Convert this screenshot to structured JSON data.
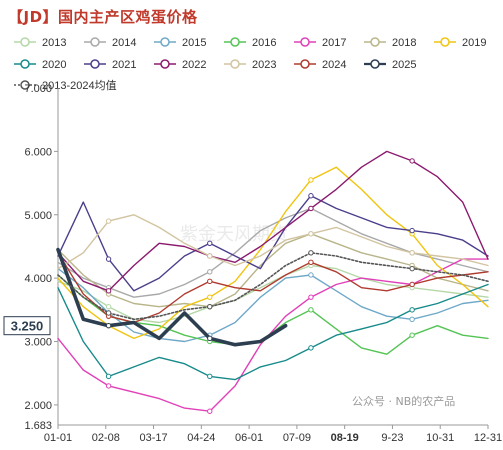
{
  "title": "【JD】国内主产区鸡蛋价格",
  "watermarks": {
    "center": "紫金天风期货",
    "corner": "公众号 · NB的农产品"
  },
  "chart_data": {
    "type": "line",
    "title": "【JD】国内主产区鸡蛋价格",
    "xlabel": "",
    "ylabel": "",
    "ylim": [
      1.683,
      7.0
    ],
    "y_ticks": [
      2.0,
      3.0,
      4.0,
      5.0,
      6.0
    ],
    "y_min_label": "1.683",
    "y_top_label": "7.000",
    "x_tick_labels": [
      "01-01",
      "02-08",
      "03-17",
      "04-24",
      "06-01",
      "07-09",
      "08-19",
      "9-23",
      "10-31",
      "12-31"
    ],
    "highlight_x_label": "08-19",
    "current_value_label": "3.250",
    "grid": false,
    "legend_position": "top",
    "series": [
      {
        "name": "2013",
        "color": "#b5d8a8",
        "style": "line",
        "values": [
          3.95,
          3.8,
          3.55,
          3.35,
          3.3,
          3.4,
          3.55,
          3.65,
          3.85,
          4.05,
          4.2,
          4.15,
          4.0,
          3.9,
          3.85,
          3.8,
          3.75,
          3.7
        ]
      },
      {
        "name": "2014",
        "color": "#a9a9a9",
        "style": "line",
        "values": [
          4.25,
          4.0,
          3.85,
          3.7,
          3.75,
          3.9,
          4.1,
          4.4,
          4.75,
          4.95,
          5.1,
          4.9,
          4.7,
          4.55,
          4.4,
          4.3,
          4.2,
          4.1
        ]
      },
      {
        "name": "2015",
        "color": "#6fa8c8",
        "style": "line",
        "values": [
          4.15,
          3.85,
          3.45,
          3.15,
          3.05,
          3.0,
          3.1,
          3.3,
          3.7,
          4.0,
          4.05,
          3.8,
          3.55,
          3.4,
          3.35,
          3.45,
          3.6,
          3.65
        ]
      },
      {
        "name": "2016",
        "color": "#55c455",
        "style": "line",
        "values": [
          4.05,
          3.7,
          3.4,
          3.3,
          3.25,
          3.1,
          3.0,
          2.95,
          3.0,
          3.3,
          3.5,
          3.2,
          2.9,
          2.8,
          3.1,
          3.25,
          3.1,
          3.05
        ]
      },
      {
        "name": "2017",
        "color": "#e040b8",
        "style": "line",
        "values": [
          3.05,
          2.55,
          2.3,
          2.2,
          2.1,
          1.95,
          1.9,
          2.3,
          2.95,
          3.4,
          3.7,
          3.9,
          4.0,
          3.95,
          3.9,
          4.1,
          4.3,
          4.3
        ]
      },
      {
        "name": "2018",
        "color": "#b9b58a",
        "style": "line",
        "values": [
          4.45,
          4.05,
          3.75,
          3.6,
          3.55,
          3.6,
          3.55,
          3.75,
          4.2,
          4.55,
          4.7,
          4.55,
          4.4,
          4.3,
          4.2,
          4.0,
          3.9,
          3.8
        ]
      },
      {
        "name": "2019",
        "color": "#f1c40f",
        "style": "line",
        "values": [
          4.0,
          3.55,
          3.25,
          3.05,
          3.2,
          3.55,
          3.7,
          3.95,
          4.45,
          5.05,
          5.55,
          5.75,
          5.4,
          5.0,
          4.7,
          4.2,
          3.9,
          3.55
        ]
      },
      {
        "name": "2020",
        "color": "#178a8a",
        "style": "line",
        "values": [
          3.85,
          3.0,
          2.45,
          2.6,
          2.75,
          2.65,
          2.45,
          2.4,
          2.6,
          2.7,
          2.9,
          3.1,
          3.2,
          3.3,
          3.5,
          3.6,
          3.75,
          3.9
        ]
      },
      {
        "name": "2021",
        "color": "#4b3f8c",
        "style": "line",
        "values": [
          4.35,
          5.2,
          4.3,
          3.8,
          4.0,
          4.35,
          4.55,
          4.35,
          4.15,
          4.8,
          5.3,
          5.1,
          4.95,
          4.8,
          4.75,
          4.7,
          4.6,
          4.35
        ]
      },
      {
        "name": "2022",
        "color": "#8b1a6e",
        "style": "line",
        "values": [
          4.4,
          3.95,
          3.8,
          4.2,
          4.55,
          4.5,
          4.35,
          4.25,
          4.5,
          4.8,
          5.1,
          5.4,
          5.75,
          6.0,
          5.85,
          5.6,
          5.2,
          4.3
        ]
      },
      {
        "name": "2023",
        "color": "#d2c4a0",
        "style": "line",
        "values": [
          4.15,
          4.4,
          4.9,
          5.0,
          4.8,
          4.55,
          4.35,
          4.2,
          4.35,
          4.6,
          4.7,
          4.8,
          4.65,
          4.5,
          4.4,
          4.35,
          4.3,
          4.2
        ]
      },
      {
        "name": "2024",
        "color": "#b03a2e",
        "style": "line",
        "values": [
          4.4,
          3.75,
          3.4,
          3.3,
          3.45,
          3.75,
          3.95,
          3.85,
          3.8,
          4.05,
          4.25,
          4.1,
          3.85,
          3.8,
          3.9,
          4.0,
          4.05,
          4.1
        ]
      },
      {
        "name": "2025",
        "color": "#2c3e50",
        "style": "bold",
        "values": [
          4.45,
          3.35,
          3.25,
          3.3,
          3.05,
          3.45,
          3.05,
          2.95,
          3.0,
          3.25,
          null,
          null,
          null,
          null,
          null,
          null,
          null,
          null
        ]
      },
      {
        "name": "2013-2024均值",
        "color": "#555555",
        "style": "dotted",
        "values": [
          4.05,
          3.7,
          3.45,
          3.35,
          3.4,
          3.5,
          3.55,
          3.65,
          3.9,
          4.2,
          4.4,
          4.35,
          4.25,
          4.2,
          4.15,
          4.1,
          4.05,
          3.95
        ]
      }
    ]
  }
}
